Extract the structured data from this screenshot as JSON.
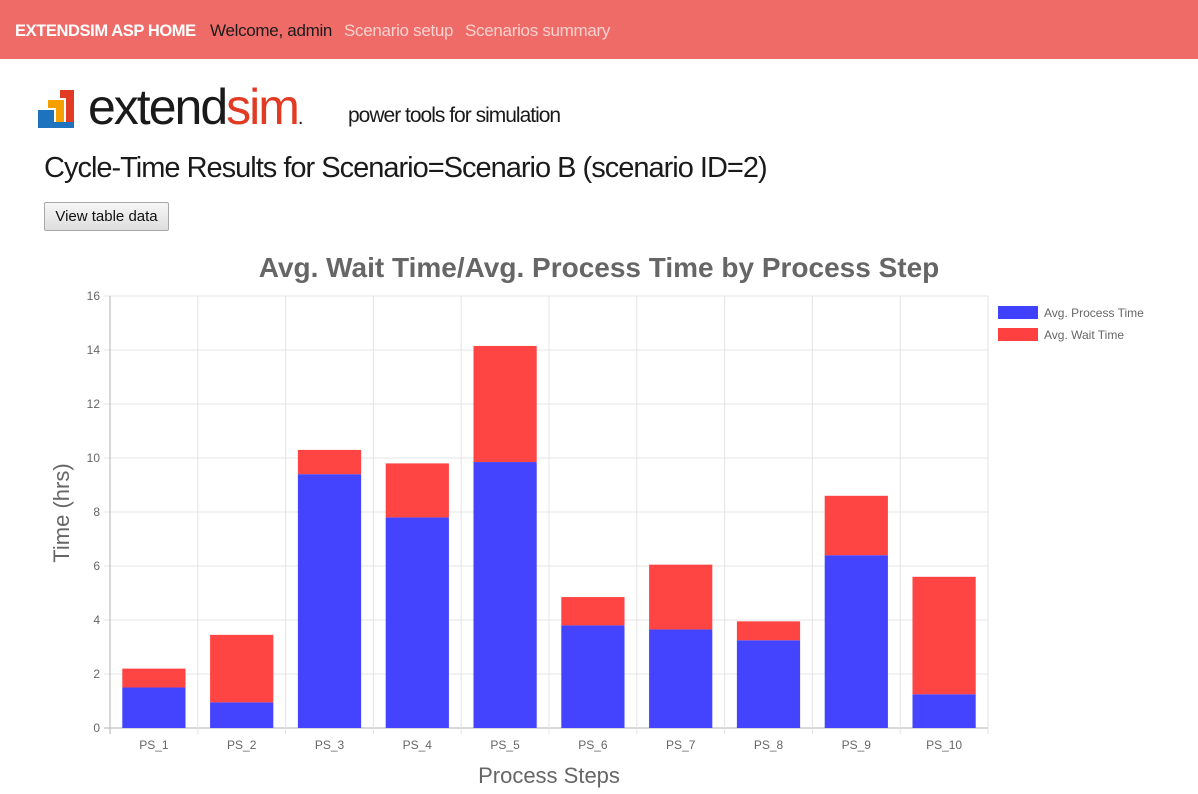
{
  "nav": {
    "brand": "EXTENDSIM ASP HOME",
    "welcome": "Welcome, admin",
    "scenario_setup": "Scenario setup",
    "scenarios_summary": "Scenarios summary"
  },
  "logo": {
    "word_part1": "extend",
    "word_part2": "sim",
    "word_suffix": ".",
    "tagline": "power tools for simulation"
  },
  "page_title": "Cycle-Time Results for Scenario=Scenario B (scenario ID=2)",
  "view_table_button": "View table data",
  "colors": {
    "navbar": "#ee6b67",
    "process_time": "#4040ff",
    "wait_time": "#ff4040"
  },
  "chart_data": {
    "type": "bar",
    "stacked": true,
    "title": "Avg. Wait Time/Avg. Process Time by Process Step",
    "xlabel": "Process Steps",
    "ylabel": "Time (hrs)",
    "ylim": [
      0,
      16
    ],
    "yticks": [
      0,
      2,
      4,
      6,
      8,
      10,
      12,
      14,
      16
    ],
    "grid": true,
    "legend_position": "right",
    "categories": [
      "PS_1",
      "PS_2",
      "PS_3",
      "PS_4",
      "PS_5",
      "PS_6",
      "PS_7",
      "PS_8",
      "PS_9",
      "PS_10"
    ],
    "series": [
      {
        "name": "Avg. Process Time",
        "color": "#4040ff",
        "values": [
          1.5,
          0.95,
          9.4,
          7.8,
          9.85,
          3.8,
          3.65,
          3.25,
          6.4,
          1.25
        ]
      },
      {
        "name": "Avg. Wait Time",
        "color": "#ff4040",
        "values": [
          0.7,
          2.5,
          0.9,
          2.0,
          4.3,
          1.05,
          2.4,
          0.7,
          2.2,
          4.35
        ]
      }
    ]
  }
}
